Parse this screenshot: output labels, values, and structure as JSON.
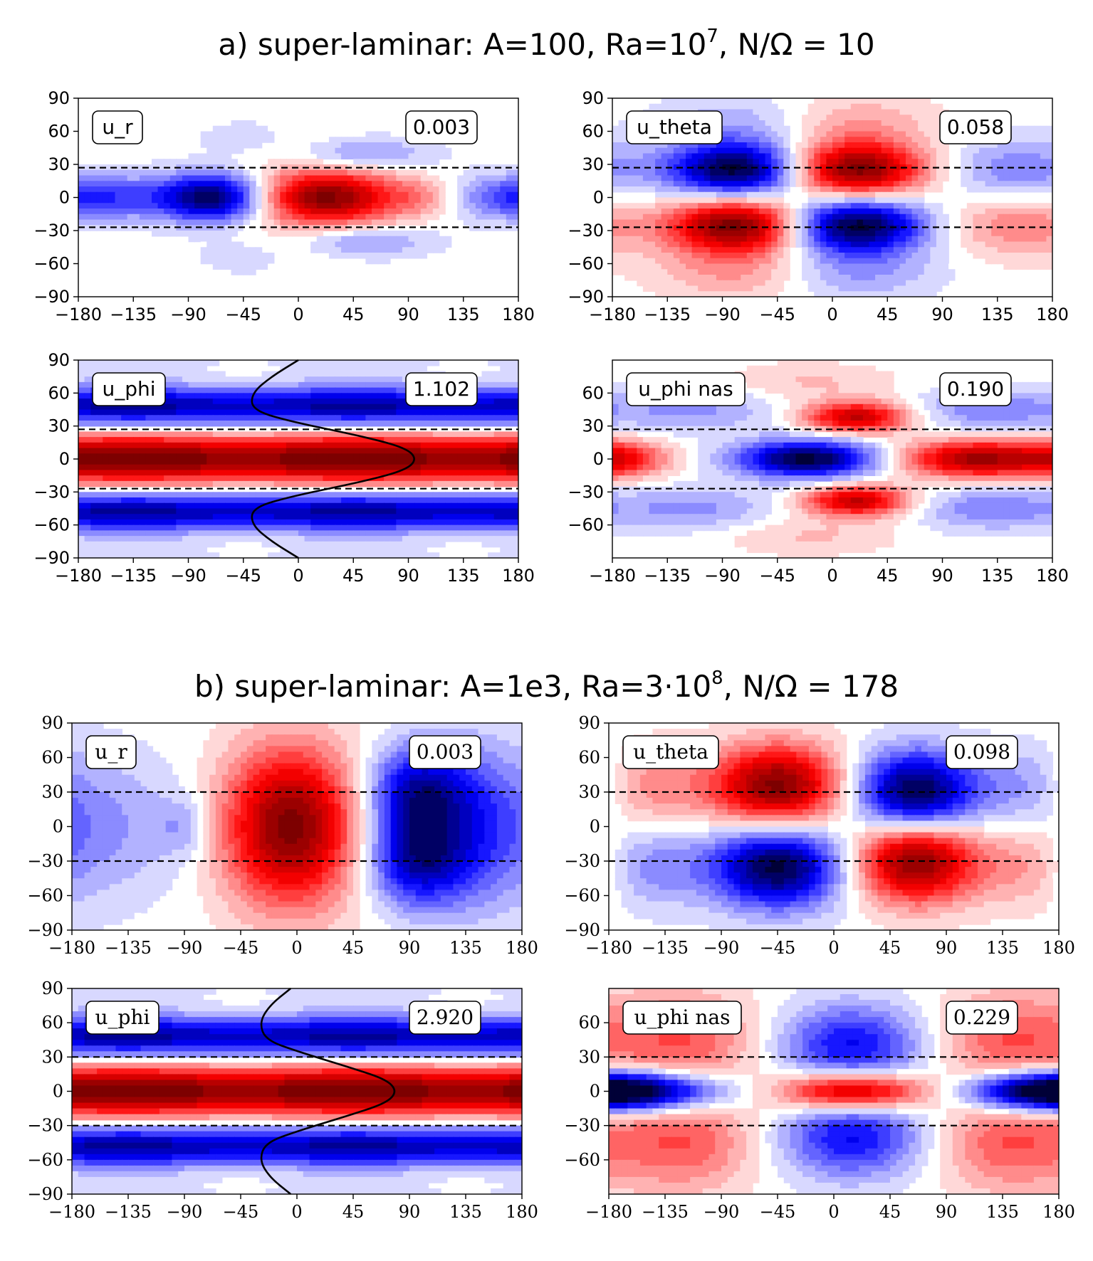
{
  "sections": [
    {
      "title": {
        "prefix": "a) super-laminar: A=100, Ra=10",
        "sup": "7",
        "suffix": ", N/Ω = 10"
      },
      "style": "sans"
    },
    {
      "title": {
        "prefix": "b) super-laminar: A=1e3, Ra=3·10",
        "sup": "8",
        "suffix": ", N/Ω = 178"
      },
      "style": "serif"
    }
  ],
  "chart_data": [
    {
      "type": "heatmap",
      "section": "a",
      "label": "u_r",
      "value_box": "0.003",
      "xlim": [
        -180,
        180
      ],
      "ylim": [
        -90,
        90
      ],
      "xticks": [
        "−180",
        "−135",
        "−90",
        "−45",
        "0",
        "45",
        "90",
        "135",
        "180"
      ],
      "yticks": [
        "90",
        "60",
        "30",
        "0",
        "−30",
        "−60",
        "−90"
      ],
      "dashed_lines_y": [
        27,
        -27
      ],
      "blobs": [
        {
          "lon": -70,
          "lat": 0,
          "sx": 32,
          "sy": 15,
          "amp": -1.0
        },
        {
          "lon": 22,
          "lat": 0,
          "sx": 42,
          "sy": 17,
          "amp": 1.0
        },
        {
          "lon": 105,
          "lat": 0,
          "sx": 22,
          "sy": 12,
          "amp": 0.22
        },
        {
          "lon": 170,
          "lat": 0,
          "sx": 40,
          "sy": 14,
          "amp": -0.3
        },
        {
          "lon": -160,
          "lat": 0,
          "sx": 35,
          "sy": 14,
          "amp": -0.3
        },
        {
          "lon": -40,
          "lat": 52,
          "sx": 30,
          "sy": 12,
          "amp": -0.14
        },
        {
          "lon": -40,
          "lat": -52,
          "sx": 30,
          "sy": 12,
          "amp": -0.14
        },
        {
          "lon": 50,
          "lat": 40,
          "sx": 40,
          "sy": 10,
          "amp": -0.28
        },
        {
          "lon": 50,
          "lat": -40,
          "sx": 40,
          "sy": 10,
          "amp": -0.28
        },
        {
          "lon": -10,
          "lat": 45,
          "sx": 35,
          "sy": 12,
          "amp": 0.12
        },
        {
          "lon": -10,
          "lat": -45,
          "sx": 35,
          "sy": 12,
          "amp": 0.12
        }
      ]
    },
    {
      "type": "heatmap",
      "section": "a",
      "label": "u_theta",
      "value_box": "0.058",
      "xlim": [
        -180,
        180
      ],
      "ylim": [
        -90,
        90
      ],
      "xticks": [
        "−180",
        "−135",
        "−90",
        "−45",
        "0",
        "45",
        "90",
        "135",
        "180"
      ],
      "yticks": [
        "90",
        "60",
        "30",
        "0",
        "−30",
        "−60",
        "−90"
      ],
      "dashed_lines_y": [
        27,
        -27
      ],
      "blobs": [
        {
          "lon": -80,
          "lat": 25,
          "sx": 38,
          "sy": 17,
          "amp": -1.0
        },
        {
          "lon": -80,
          "lat": -25,
          "sx": 38,
          "sy": 17,
          "amp": 1.0
        },
        {
          "lon": 20,
          "lat": 25,
          "sx": 38,
          "sy": 17,
          "amp": 1.0
        },
        {
          "lon": 20,
          "lat": -25,
          "sx": 38,
          "sy": 17,
          "amp": -1.0
        },
        {
          "lon": -80,
          "lat": 65,
          "sx": 45,
          "sy": 20,
          "amp": -0.2
        },
        {
          "lon": -80,
          "lat": -65,
          "sx": 45,
          "sy": 20,
          "amp": 0.25
        },
        {
          "lon": 20,
          "lat": 65,
          "sx": 45,
          "sy": 20,
          "amp": 0.22
        },
        {
          "lon": 20,
          "lat": -65,
          "sx": 45,
          "sy": 20,
          "amp": -0.25
        },
        {
          "lon": 150,
          "lat": 25,
          "sx": 40,
          "sy": 20,
          "amp": -0.3
        },
        {
          "lon": 150,
          "lat": -25,
          "sx": 40,
          "sy": 20,
          "amp": 0.3
        }
      ]
    },
    {
      "type": "heatmap",
      "section": "a",
      "label": "u_phi",
      "value_box": "1.102",
      "xlim": [
        -180,
        180
      ],
      "ylim": [
        -90,
        90
      ],
      "xticks": [
        "−180",
        "−135",
        "−90",
        "−45",
        "0",
        "45",
        "90",
        "135",
        "180"
      ],
      "yticks": [
        "90",
        "60",
        "30",
        "0",
        "−30",
        "−60",
        "−90"
      ],
      "dashed_lines_y": [
        27,
        -27
      ],
      "zonal_profile": [
        {
          "lat": 90,
          "lon": 0
        },
        {
          "lat": 75,
          "lon": -22
        },
        {
          "lat": 60,
          "lon": -38
        },
        {
          "lat": 45,
          "lon": -38
        },
        {
          "lat": 35,
          "lon": -10
        },
        {
          "lat": 20,
          "lon": 55
        },
        {
          "lat": 10,
          "lon": 88
        },
        {
          "lat": 0,
          "lon": 97
        },
        {
          "lat": -10,
          "lon": 88
        },
        {
          "lat": -20,
          "lon": 55
        },
        {
          "lat": -35,
          "lon": -10
        },
        {
          "lat": -45,
          "lon": -38
        },
        {
          "lat": -60,
          "lon": -38
        },
        {
          "lat": -75,
          "lon": -22
        },
        {
          "lat": -90,
          "lon": 0
        }
      ]
    },
    {
      "type": "heatmap",
      "section": "a",
      "label": "u_phi nas",
      "value_box": "0.190",
      "xlim": [
        -180,
        180
      ],
      "ylim": [
        -90,
        90
      ],
      "xticks": [
        "−180",
        "−135",
        "−90",
        "−45",
        "0",
        "45",
        "90",
        "135",
        "180"
      ],
      "yticks": [
        "60",
        "30",
        "0",
        "−30",
        "−60"
      ],
      "dashed_lines_y": [
        27,
        -27
      ],
      "blobs": [
        {
          "lon": -20,
          "lat": 0,
          "sx": 40,
          "sy": 12,
          "amp": -1.0
        },
        {
          "lon": 120,
          "lat": 0,
          "sx": 45,
          "sy": 12,
          "amp": 0.9
        },
        {
          "lon": -170,
          "lat": 0,
          "sx": 25,
          "sy": 12,
          "amp": 0.45
        },
        {
          "lon": 20,
          "lat": 38,
          "sx": 30,
          "sy": 10,
          "amp": 0.8
        },
        {
          "lon": 20,
          "lat": -38,
          "sx": 30,
          "sy": 10,
          "amp": 0.8
        },
        {
          "lon": 130,
          "lat": 45,
          "sx": 45,
          "sy": 14,
          "amp": -0.3
        },
        {
          "lon": 130,
          "lat": -45,
          "sx": 45,
          "sy": 14,
          "amp": -0.3
        },
        {
          "lon": -110,
          "lat": 45,
          "sx": 45,
          "sy": 14,
          "amp": -0.25
        },
        {
          "lon": -110,
          "lat": -45,
          "sx": 45,
          "sy": 14,
          "amp": -0.25
        },
        {
          "lon": -20,
          "lat": 70,
          "sx": 50,
          "sy": 12,
          "amp": 0.15
        },
        {
          "lon": -20,
          "lat": -70,
          "sx": 50,
          "sy": 12,
          "amp": 0.15
        }
      ]
    },
    {
      "type": "heatmap",
      "section": "b",
      "label": "u_r",
      "value_box": "0.003",
      "xlim": [
        -180,
        180
      ],
      "ylim": [
        -90,
        90
      ],
      "xticks": [
        "−180",
        "−135",
        "−90",
        "−45",
        "0",
        "45",
        "90",
        "135",
        "180"
      ],
      "yticks": [
        "90",
        "60",
        "30",
        "0",
        "−30",
        "−60",
        "−90"
      ],
      "dashed_lines_y": [
        30,
        -30
      ],
      "blobs": [
        {
          "lon": -5,
          "lat": 0,
          "sx": 38,
          "sy": 48,
          "amp": 1.0
        },
        {
          "lon": 95,
          "lat": 30,
          "sx": 28,
          "sy": 28,
          "amp": -0.7
        },
        {
          "lon": 95,
          "lat": -30,
          "sx": 28,
          "sy": 28,
          "amp": -0.7
        },
        {
          "lon": 140,
          "lat": 0,
          "sx": 30,
          "sy": 50,
          "amp": -0.35
        },
        {
          "lon": -160,
          "lat": 0,
          "sx": 50,
          "sy": 45,
          "amp": -0.25
        },
        {
          "lon": -90,
          "lat": 0,
          "sx": 15,
          "sy": 18,
          "amp": -0.2
        }
      ]
    },
    {
      "type": "heatmap",
      "section": "b",
      "label": "u_theta",
      "value_box": "0.098",
      "xlim": [
        -180,
        180
      ],
      "ylim": [
        -90,
        90
      ],
      "xticks": [
        "−180",
        "−135",
        "−90",
        "−45",
        "0",
        "45",
        "90",
        "135",
        "180"
      ],
      "yticks": [
        "90",
        "60",
        "30",
        "0",
        "−30",
        "−60",
        "−90"
      ],
      "dashed_lines_y": [
        30,
        -30
      ],
      "blobs": [
        {
          "lon": -45,
          "lat": 35,
          "sx": 38,
          "sy": 25,
          "amp": 1.0
        },
        {
          "lon": -45,
          "lat": -35,
          "sx": 38,
          "sy": 25,
          "amp": -1.0
        },
        {
          "lon": 65,
          "lat": 30,
          "sx": 35,
          "sy": 25,
          "amp": -1.0
        },
        {
          "lon": 65,
          "lat": -30,
          "sx": 35,
          "sy": 25,
          "amp": 1.0
        },
        {
          "lon": -150,
          "lat": 35,
          "sx": 30,
          "sy": 25,
          "amp": 0.3
        },
        {
          "lon": -150,
          "lat": -35,
          "sx": 30,
          "sy": 25,
          "amp": -0.3
        },
        {
          "lon": 160,
          "lat": 35,
          "sx": 30,
          "sy": 25,
          "amp": -0.25
        },
        {
          "lon": 160,
          "lat": -35,
          "sx": 30,
          "sy": 25,
          "amp": 0.25
        }
      ]
    },
    {
      "type": "heatmap",
      "section": "b",
      "label": "u_phi",
      "value_box": "2.920",
      "xlim": [
        -180,
        180
      ],
      "ylim": [
        -90,
        90
      ],
      "xticks": [
        "−180",
        "−135",
        "−90",
        "−45",
        "0",
        "45",
        "90",
        "135",
        "180"
      ],
      "yticks": [
        "90",
        "60",
        "30",
        "0",
        "−30",
        "−60",
        "−90"
      ],
      "dashed_lines_y": [
        30,
        -30
      ],
      "zonal_profile": [
        {
          "lat": 90,
          "lon": -5
        },
        {
          "lat": 75,
          "lon": -22
        },
        {
          "lat": 60,
          "lon": -30
        },
        {
          "lat": 45,
          "lon": -25
        },
        {
          "lat": 35,
          "lon": 0
        },
        {
          "lat": 20,
          "lon": 45
        },
        {
          "lat": 10,
          "lon": 72
        },
        {
          "lat": 0,
          "lon": 80
        },
        {
          "lat": -10,
          "lon": 72
        },
        {
          "lat": -20,
          "lon": 45
        },
        {
          "lat": -35,
          "lon": 0
        },
        {
          "lat": -45,
          "lon": -25
        },
        {
          "lat": -60,
          "lon": -30
        },
        {
          "lat": -75,
          "lon": -22
        },
        {
          "lat": -90,
          "lon": -5
        }
      ]
    },
    {
      "type": "heatmap",
      "section": "b",
      "label": "u_phi nas",
      "value_box": "0.229",
      "xlim": [
        -180,
        180
      ],
      "ylim": [
        -90,
        90
      ],
      "xticks": [
        "−180",
        "−135",
        "−90",
        "−45",
        "0",
        "45",
        "90",
        "135",
        "180"
      ],
      "yticks": [
        "60",
        "30",
        "0",
        "−30",
        "−60"
      ],
      "dashed_lines_y": [
        30,
        -30
      ],
      "blobs": [
        {
          "lon": 15,
          "lat": 0,
          "sx": 40,
          "sy": 12,
          "amp": 1.0
        },
        {
          "lon": -150,
          "lat": 0,
          "sx": 45,
          "sy": 12,
          "amp": -0.9
        },
        {
          "lon": 160,
          "lat": 0,
          "sx": 40,
          "sy": 12,
          "amp": -0.9
        },
        {
          "lon": 15,
          "lat": 40,
          "sx": 40,
          "sy": 25,
          "amp": -0.6
        },
        {
          "lon": 15,
          "lat": -40,
          "sx": 40,
          "sy": 25,
          "amp": -0.6
        },
        {
          "lon": -120,
          "lat": 45,
          "sx": 40,
          "sy": 30,
          "amp": 0.4
        },
        {
          "lon": -120,
          "lat": -45,
          "sx": 40,
          "sy": 30,
          "amp": 0.4
        },
        {
          "lon": 140,
          "lat": 45,
          "sx": 40,
          "sy": 30,
          "amp": 0.4
        },
        {
          "lon": 140,
          "lat": -45,
          "sx": 40,
          "sy": 30,
          "amp": 0.4
        }
      ]
    }
  ]
}
